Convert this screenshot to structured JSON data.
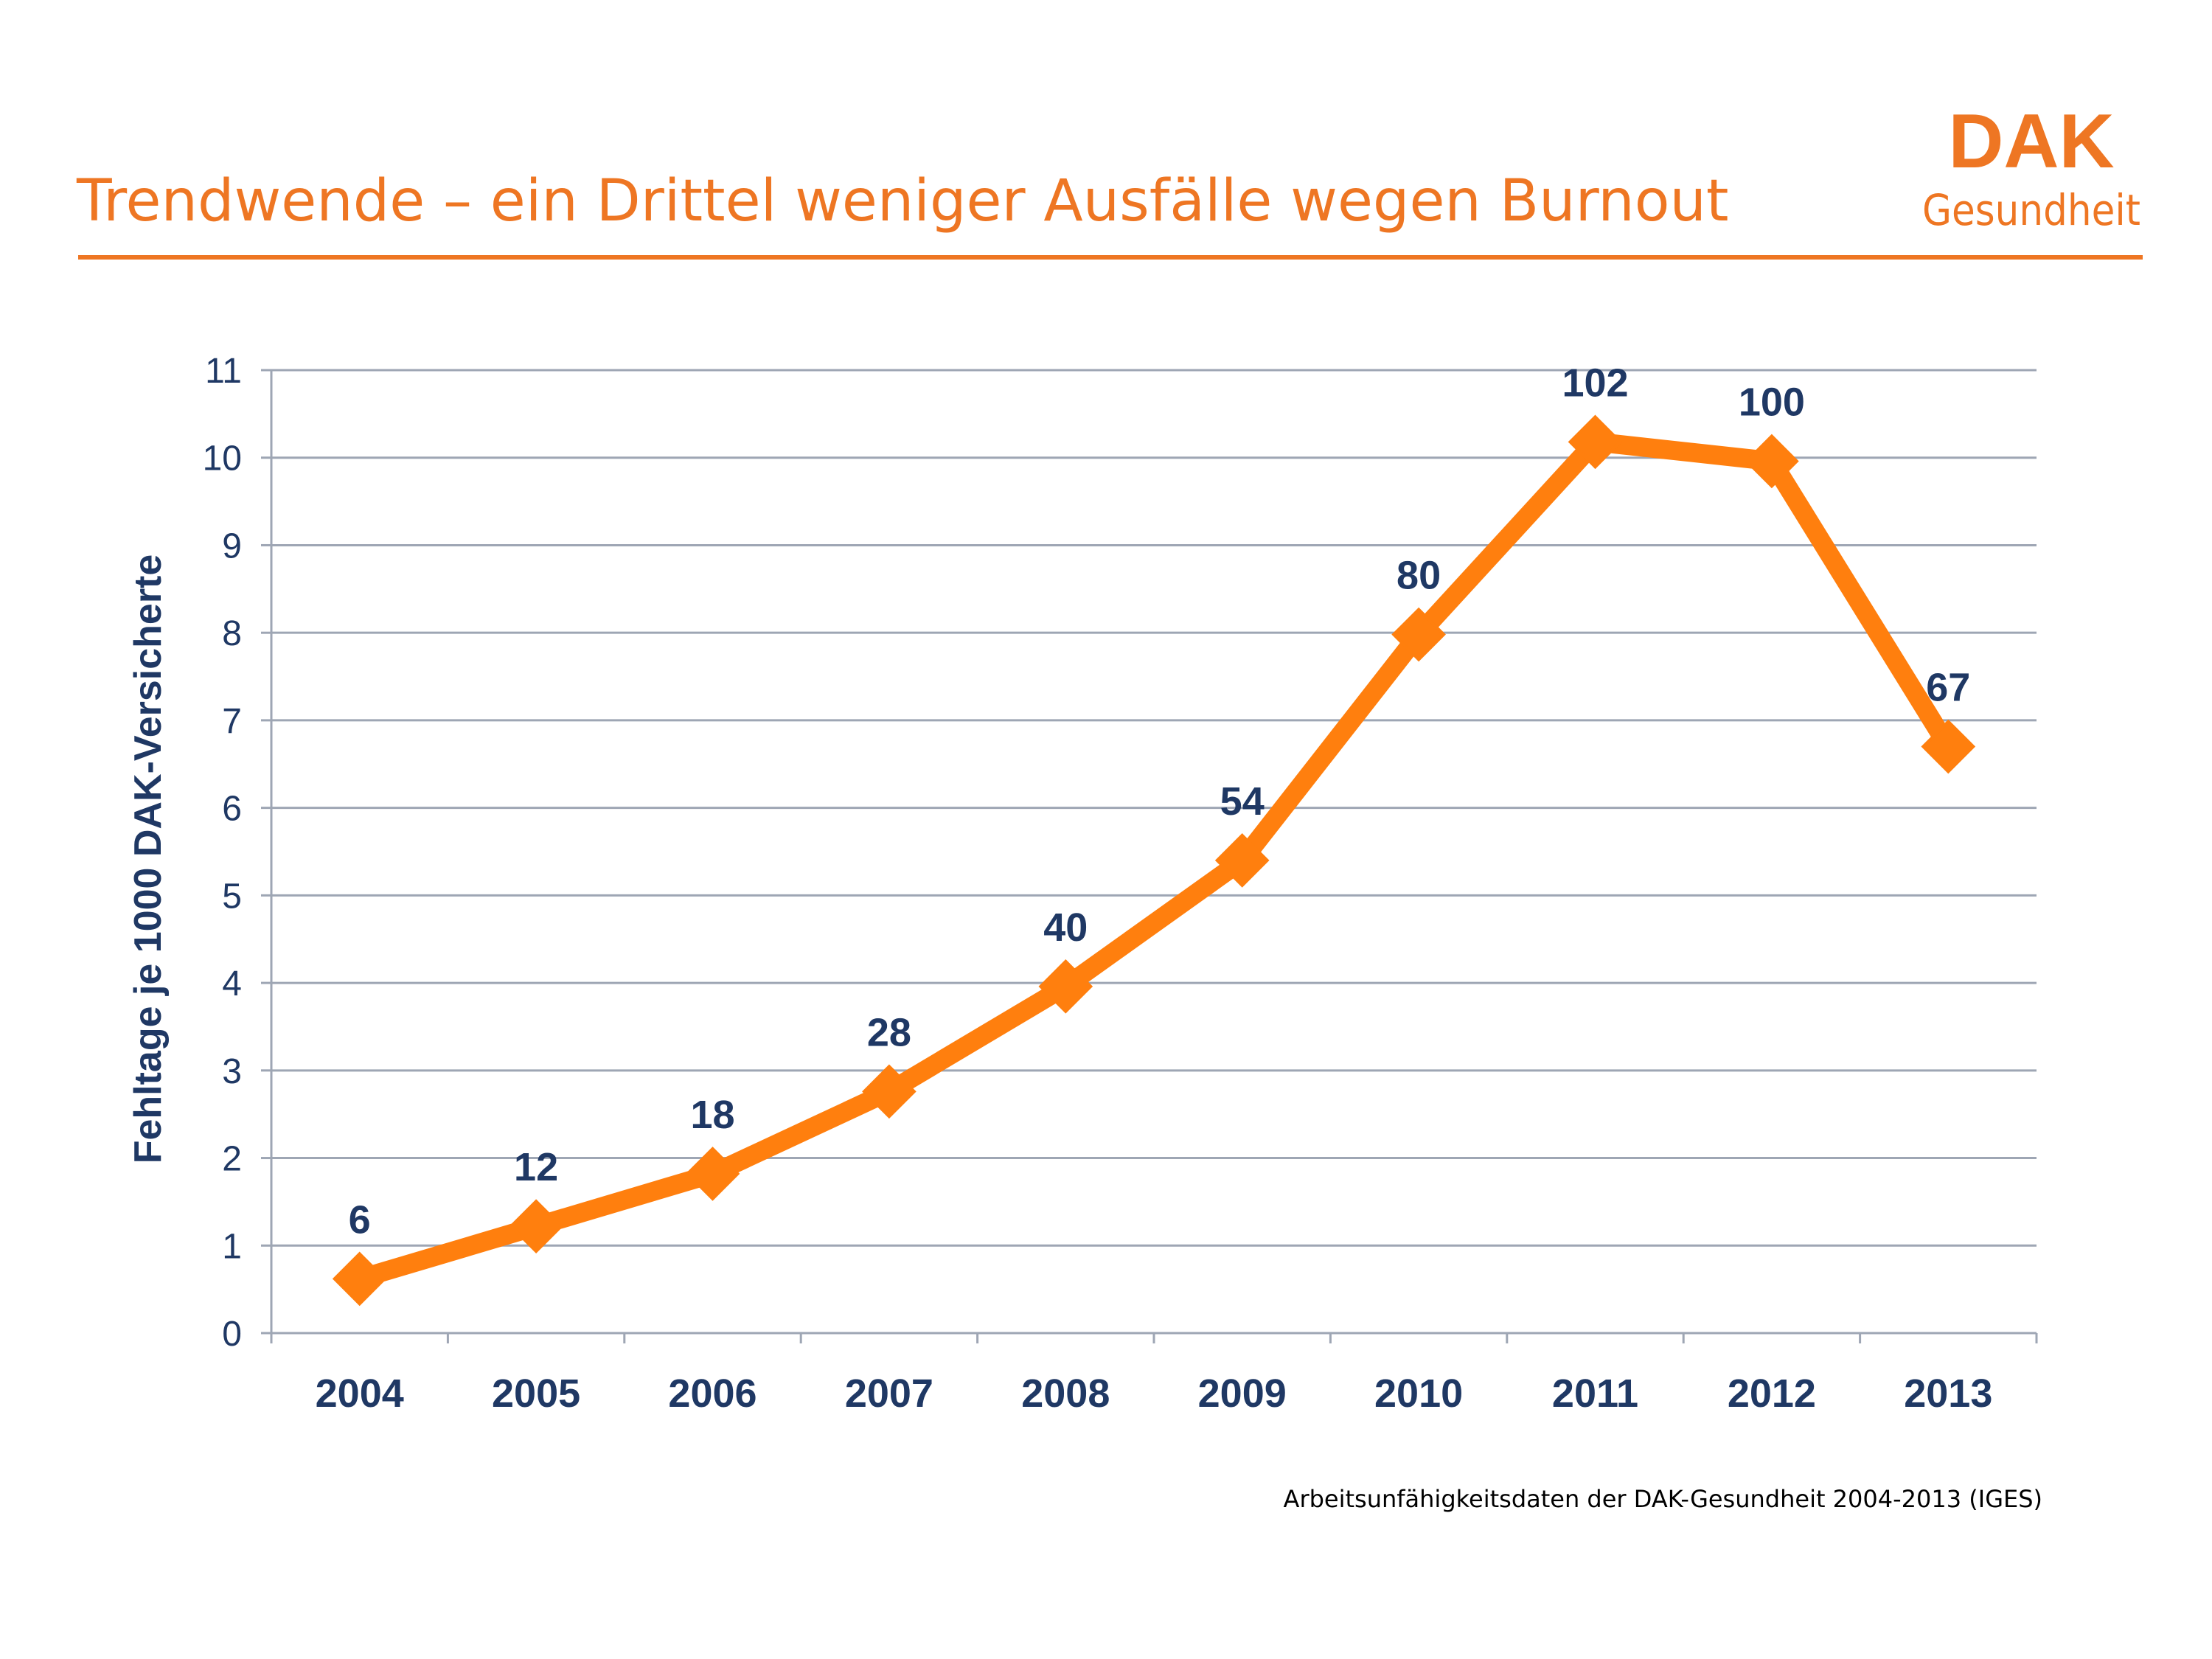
{
  "title": "Trendwende – ein Drittel weniger Ausfälle wegen Burnout",
  "logo": {
    "line1": "DAK",
    "line2": "Gesundheit"
  },
  "source_note": "Arbeitsunfähigkeitsdaten der DAK-Gesundheit 2004-2013 (IGES)",
  "colors": {
    "accent": "#EE7623",
    "series": "#FF7F0E",
    "text_blue": "#1F3864",
    "grid": "#9EA6B4"
  },
  "chart_data": {
    "type": "line",
    "title": "",
    "xlabel": "",
    "ylabel": "Fehltage je 1000 DAK-Versicherte",
    "x": [
      "2004",
      "2005",
      "2006",
      "2007",
      "2008",
      "2009",
      "2010",
      "2011",
      "2012",
      "2013"
    ],
    "series": [
      {
        "values": [
          0.62,
          1.22,
          1.82,
          2.76,
          3.96,
          5.4,
          7.98,
          10.18,
          9.96,
          6.7
        ],
        "data_labels": [
          "6",
          "12",
          "18",
          "28",
          "40",
          "54",
          "80",
          "102",
          "100",
          "67"
        ],
        "marker": "diamond"
      }
    ],
    "ylim": [
      0,
      11
    ],
    "yticks": [
      "0",
      "1",
      "2",
      "3",
      "4",
      "5",
      "6",
      "7",
      "8",
      "9",
      "10",
      "11"
    ],
    "grid": true,
    "legend": "none"
  }
}
